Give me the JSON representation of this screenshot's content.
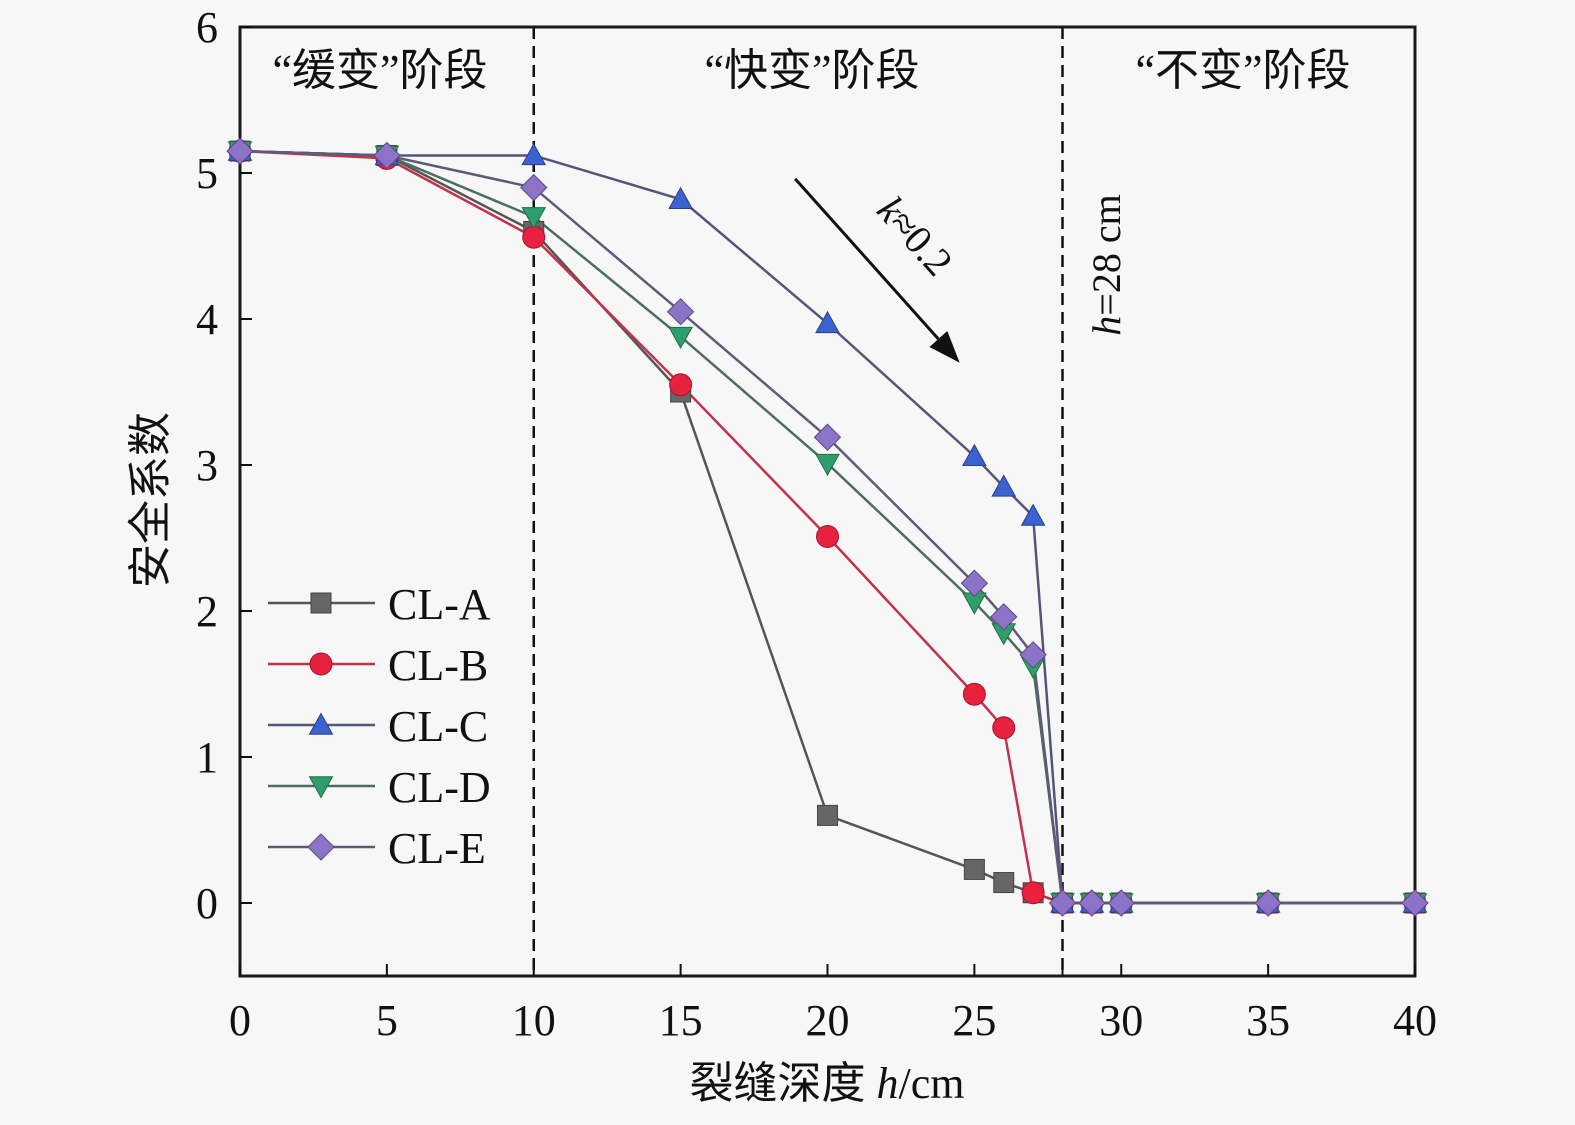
{
  "chart_data": {
    "type": "line",
    "title": "",
    "xlabel": "裂缝深度 h/cm",
    "xlabel_parts": {
      "text": "裂缝深度 ",
      "italic": "h",
      "unit": "/cm"
    },
    "ylabel": "安全系数",
    "xlim": [
      0,
      40
    ],
    "ylim": [
      -0.5,
      6
    ],
    "xticks": [
      0,
      5,
      10,
      15,
      20,
      25,
      30,
      35,
      40
    ],
    "xticks_minor": [
      28
    ],
    "yticks": [
      0,
      1,
      2,
      3,
      4,
      5,
      6
    ],
    "grid": false,
    "legend_position": "bottom-left",
    "x": [
      0,
      5,
      10,
      15,
      20,
      25,
      26,
      27,
      28,
      29,
      30,
      35,
      40
    ],
    "series": [
      {
        "name": "CL-A",
        "marker": "square",
        "color": "#666666",
        "line_color": "#555555",
        "values": [
          5.15,
          5.12,
          4.6,
          3.5,
          0.6,
          0.23,
          0.14,
          0.07,
          0,
          0,
          0,
          0,
          0
        ]
      },
      {
        "name": "CL-B",
        "marker": "circle",
        "color": "#e8213f",
        "line_color": "#c2334a",
        "values": [
          5.15,
          5.1,
          4.56,
          3.55,
          2.51,
          1.43,
          1.2,
          0.07,
          0,
          0,
          0,
          0,
          0
        ]
      },
      {
        "name": "CL-C",
        "marker": "triangle-up",
        "color": "#3b62d0",
        "line_color": "#55557a",
        "values": [
          5.15,
          5.12,
          5.12,
          4.82,
          3.97,
          3.06,
          2.85,
          2.65,
          0,
          0,
          0,
          0,
          0
        ]
      },
      {
        "name": "CL-D",
        "marker": "triangle-down",
        "color": "#2e9e6b",
        "line_color": "#4a6e62",
        "values": [
          5.15,
          5.12,
          4.7,
          3.88,
          3.01,
          2.06,
          1.85,
          1.62,
          0,
          0,
          0,
          0,
          0
        ]
      },
      {
        "name": "CL-E",
        "marker": "diamond",
        "color": "#8c73c8",
        "line_color": "#5e5a7a",
        "values": [
          5.15,
          5.12,
          4.9,
          4.05,
          3.19,
          2.19,
          1.96,
          1.7,
          0,
          0,
          0,
          0,
          0
        ]
      }
    ],
    "vlines": [
      {
        "x": 10,
        "style": "dashed"
      },
      {
        "x": 28,
        "style": "dashed"
      }
    ],
    "stages": [
      {
        "label": "“缓变”阶段",
        "x_range": [
          0,
          10
        ]
      },
      {
        "label": "“快变”阶段",
        "x_range": [
          10,
          28
        ]
      },
      {
        "label": "“不变”阶段",
        "x_range": [
          28,
          40
        ]
      }
    ],
    "annotations": [
      {
        "type": "arrow",
        "text": "k≈0.2",
        "italic": "k",
        "rest": "≈0.2",
        "from": [
          18.9,
          4.96
        ],
        "to": [
          24.5,
          3.7
        ]
      },
      {
        "type": "text",
        "text": "h=28 cm",
        "italic": "h",
        "rest": "=28 cm",
        "rotation": "vertical",
        "at_x": 28.5
      }
    ]
  }
}
